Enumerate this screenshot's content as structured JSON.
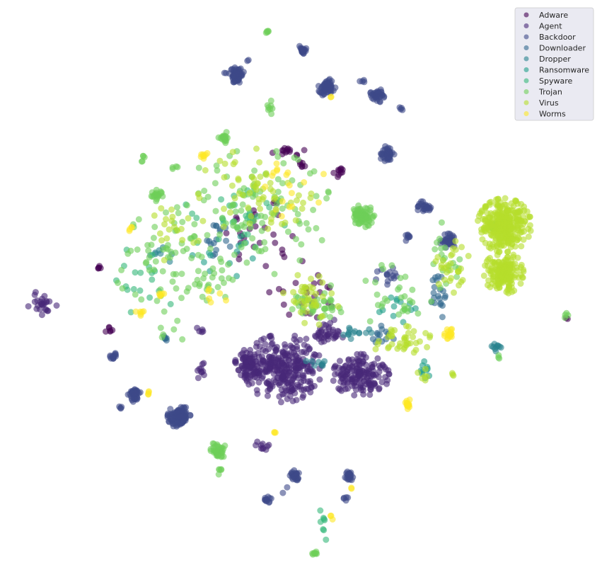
{
  "chart_data": {
    "type": "scatter",
    "title": "",
    "xlabel": "",
    "ylabel": "",
    "axes_visible": false,
    "grid": false,
    "legend_position": "top-right",
    "legend_bg": "#eaeaf2",
    "point_alpha": 0.6,
    "series": [
      {
        "name": "Adware",
        "color": "#440154",
        "clusters": [
          {
            "cx": 403,
            "cy": 214,
            "rx": 28,
            "ry": 8,
            "n": 14
          },
          {
            "cx": 140,
            "cy": 378,
            "rx": 4,
            "ry": 3,
            "n": 5
          },
          {
            "cx": 480,
            "cy": 242,
            "rx": 10,
            "ry": 12,
            "n": 10
          },
          {
            "cx": 427,
            "cy": 232,
            "rx": 8,
            "ry": 6,
            "n": 6
          },
          {
            "cx": 380,
            "cy": 330,
            "rx": 70,
            "ry": 60,
            "n": 30
          },
          {
            "cx": 430,
            "cy": 420,
            "rx": 60,
            "ry": 40,
            "n": 22
          },
          {
            "cx": 155,
            "cy": 465,
            "rx": 6,
            "ry": 8,
            "n": 6
          },
          {
            "cx": 800,
            "cy": 450,
            "rx": 3,
            "ry": 3,
            "n": 2
          }
        ]
      },
      {
        "name": "Agent",
        "color": "#482878",
        "clusters": [
          {
            "cx": 60,
            "cy": 430,
            "rx": 20,
            "ry": 22,
            "n": 26
          },
          {
            "cx": 400,
            "cy": 520,
            "rx": 55,
            "ry": 48,
            "n": 300
          },
          {
            "cx": 352,
            "cy": 515,
            "rx": 20,
            "ry": 22,
            "n": 70
          },
          {
            "cx": 510,
            "cy": 530,
            "rx": 40,
            "ry": 30,
            "n": 160
          },
          {
            "cx": 285,
            "cy": 525,
            "rx": 6,
            "ry": 14,
            "n": 10
          },
          {
            "cx": 370,
            "cy": 628,
            "rx": 10,
            "ry": 10,
            "n": 10
          },
          {
            "cx": 283,
            "cy": 465,
            "rx": 5,
            "ry": 5,
            "n": 5
          },
          {
            "cx": 460,
            "cy": 470,
            "rx": 30,
            "ry": 20,
            "n": 40
          }
        ]
      },
      {
        "name": "Backdoor",
        "color": "#3e4989",
        "clusters": [
          {
            "cx": 335,
            "cy": 106,
            "rx": 11,
            "ry": 11,
            "n": 60
          },
          {
            "cx": 427,
            "cy": 70,
            "rx": 6,
            "ry": 6,
            "n": 22
          },
          {
            "cx": 462,
            "cy": 124,
            "rx": 12,
            "ry": 13,
            "n": 60
          },
          {
            "cx": 533,
            "cy": 135,
            "rx": 10,
            "ry": 10,
            "n": 40
          },
          {
            "cx": 548,
            "cy": 218,
            "rx": 11,
            "ry": 12,
            "n": 40
          },
          {
            "cx": 253,
            "cy": 588,
            "rx": 16,
            "ry": 16,
            "n": 110
          },
          {
            "cx": 191,
            "cy": 558,
            "rx": 10,
            "ry": 10,
            "n": 40
          },
          {
            "cx": 160,
            "cy": 502,
            "rx": 6,
            "ry": 6,
            "n": 14
          },
          {
            "cx": 418,
            "cy": 672,
            "rx": 8,
            "ry": 8,
            "n": 25
          },
          {
            "cx": 493,
            "cy": 673,
            "rx": 8,
            "ry": 8,
            "n": 22
          },
          {
            "cx": 379,
            "cy": 707,
            "rx": 6,
            "ry": 6,
            "n": 12
          },
          {
            "cx": 399,
            "cy": 696,
            "rx": 2,
            "ry": 2,
            "n": 1
          },
          {
            "cx": 406,
            "cy": 688,
            "rx": 2,
            "ry": 2,
            "n": 1
          },
          {
            "cx": 490,
            "cy": 704,
            "rx": 4,
            "ry": 4,
            "n": 5
          },
          {
            "cx": 351,
            "cy": 86,
            "rx": 2,
            "ry": 2,
            "n": 2
          },
          {
            "cx": 319,
            "cy": 103,
            "rx": 2,
            "ry": 2,
            "n": 2
          },
          {
            "cx": 567,
            "cy": 154,
            "rx": 3,
            "ry": 3,
            "n": 4
          },
          {
            "cx": 513,
            "cy": 115,
            "rx": 8,
            "ry": 2,
            "n": 4
          },
          {
            "cx": 634,
            "cy": 340,
            "rx": 14,
            "ry": 10,
            "n": 40
          },
          {
            "cx": 599,
            "cy": 292,
            "rx": 10,
            "ry": 8,
            "n": 25
          },
          {
            "cx": 172,
            "cy": 576,
            "rx": 4,
            "ry": 3,
            "n": 4
          },
          {
            "cx": 577,
            "cy": 335,
            "rx": 4,
            "ry": 8,
            "n": 8
          },
          {
            "cx": 550,
            "cy": 390,
            "rx": 20,
            "ry": 12,
            "n": 15
          }
        ]
      },
      {
        "name": "Downloader",
        "color": "#31688e",
        "clusters": [
          {
            "cx": 310,
            "cy": 340,
            "rx": 20,
            "ry": 40,
            "n": 16
          },
          {
            "cx": 620,
            "cy": 420,
            "rx": 14,
            "ry": 30,
            "n": 20
          },
          {
            "cx": 235,
            "cy": 478,
            "rx": 8,
            "ry": 4,
            "n": 6
          },
          {
            "cx": 540,
            "cy": 470,
            "rx": 20,
            "ry": 15,
            "n": 14
          }
        ]
      },
      {
        "name": "Dropper",
        "color": "#26828e",
        "clusters": [
          {
            "cx": 700,
            "cy": 490,
            "rx": 10,
            "ry": 6,
            "n": 10
          },
          {
            "cx": 500,
            "cy": 470,
            "rx": 25,
            "ry": 10,
            "n": 14
          },
          {
            "cx": 450,
            "cy": 515,
            "rx": 20,
            "ry": 10,
            "n": 8
          },
          {
            "cx": 225,
            "cy": 360,
            "rx": 20,
            "ry": 15,
            "n": 8
          }
        ]
      },
      {
        "name": "Ransomware",
        "color": "#1f9e89",
        "clusters": [
          {
            "cx": 600,
            "cy": 520,
            "rx": 14,
            "ry": 14,
            "n": 10
          },
          {
            "cx": 330,
            "cy": 350,
            "rx": 60,
            "ry": 40,
            "n": 14
          },
          {
            "cx": 560,
            "cy": 440,
            "rx": 40,
            "ry": 20,
            "n": 12
          }
        ]
      },
      {
        "name": "Spyware",
        "color": "#35b779",
        "clusters": [
          {
            "cx": 330,
            "cy": 300,
            "rx": 90,
            "ry": 60,
            "n": 30
          },
          {
            "cx": 210,
            "cy": 400,
            "rx": 50,
            "ry": 60,
            "n": 18
          },
          {
            "cx": 455,
            "cy": 745,
            "rx": 8,
            "ry": 30,
            "n": 8
          }
        ]
      },
      {
        "name": "Trojan",
        "color": "#6ece58",
        "clusters": [
          {
            "cx": 378,
            "cy": 46,
            "rx": 3,
            "ry": 4,
            "n": 5
          },
          {
            "cx": 381,
            "cy": 152,
            "rx": 4,
            "ry": 12,
            "n": 8
          },
          {
            "cx": 317,
            "cy": 194,
            "rx": 8,
            "ry": 8,
            "n": 20
          },
          {
            "cx": 222,
            "cy": 276,
            "rx": 8,
            "ry": 8,
            "n": 20
          },
          {
            "cx": 513,
            "cy": 305,
            "rx": 16,
            "ry": 16,
            "n": 80
          },
          {
            "cx": 308,
            "cy": 636,
            "rx": 12,
            "ry": 12,
            "n": 35
          },
          {
            "cx": 311,
            "cy": 665,
            "rx": 3,
            "ry": 8,
            "n": 5
          },
          {
            "cx": 445,
            "cy": 782,
            "rx": 8,
            "ry": 3,
            "n": 8
          },
          {
            "cx": 203,
            "cy": 225,
            "rx": 4,
            "ry": 10,
            "n": 5
          },
          {
            "cx": 247,
            "cy": 236,
            "rx": 4,
            "ry": 4,
            "n": 4
          },
          {
            "cx": 800,
            "cy": 444,
            "rx": 4,
            "ry": 5,
            "n": 4
          },
          {
            "cx": 705,
            "cy": 505,
            "rx": 4,
            "ry": 4,
            "n": 3
          },
          {
            "cx": 360,
            "cy": 300,
            "rx": 110,
            "ry": 90,
            "n": 110
          },
          {
            "cx": 230,
            "cy": 370,
            "rx": 70,
            "ry": 70,
            "n": 60
          },
          {
            "cx": 300,
            "cy": 400,
            "rx": 40,
            "ry": 40,
            "n": 20
          },
          {
            "cx": 450,
            "cy": 430,
            "rx": 40,
            "ry": 30,
            "n": 40
          },
          {
            "cx": 560,
            "cy": 420,
            "rx": 50,
            "ry": 50,
            "n": 30
          },
          {
            "cx": 630,
            "cy": 360,
            "rx": 20,
            "ry": 50,
            "n": 20
          },
          {
            "cx": 240,
            "cy": 470,
            "rx": 20,
            "ry": 20,
            "n": 6
          },
          {
            "cx": 700,
            "cy": 320,
            "rx": 10,
            "ry": 10,
            "n": 10
          }
        ]
      },
      {
        "name": "Virus",
        "color": "#b5de2b",
        "clusters": [
          {
            "cx": 713,
            "cy": 318,
            "rx": 38,
            "ry": 38,
            "n": 300
          },
          {
            "cx": 712,
            "cy": 385,
            "rx": 28,
            "ry": 30,
            "n": 170
          },
          {
            "cx": 640,
            "cy": 380,
            "rx": 25,
            "ry": 40,
            "n": 30
          },
          {
            "cx": 360,
            "cy": 270,
            "rx": 80,
            "ry": 60,
            "n": 60
          },
          {
            "cx": 440,
            "cy": 420,
            "rx": 40,
            "ry": 40,
            "n": 40
          },
          {
            "cx": 565,
            "cy": 480,
            "rx": 45,
            "ry": 20,
            "n": 40
          },
          {
            "cx": 250,
            "cy": 330,
            "rx": 50,
            "ry": 40,
            "n": 20
          },
          {
            "cx": 600,
            "cy": 530,
            "rx": 10,
            "ry": 10,
            "n": 6
          },
          {
            "cx": 640,
            "cy": 528,
            "rx": 3,
            "ry": 3,
            "n": 3
          }
        ]
      },
      {
        "name": "Worms",
        "color": "#fde725",
        "clusters": [
          {
            "cx": 636,
            "cy": 472,
            "rx": 8,
            "ry": 8,
            "n": 18
          },
          {
            "cx": 576,
            "cy": 572,
            "rx": 6,
            "ry": 14,
            "n": 14
          },
          {
            "cx": 227,
            "cy": 416,
            "rx": 5,
            "ry": 5,
            "n": 6
          },
          {
            "cx": 210,
            "cy": 555,
            "rx": 4,
            "ry": 4,
            "n": 4
          },
          {
            "cx": 388,
            "cy": 610,
            "rx": 3,
            "ry": 3,
            "n": 3
          },
          {
            "cx": 468,
            "cy": 137,
            "rx": 3,
            "ry": 3,
            "n": 2
          },
          {
            "cx": 287,
            "cy": 218,
            "rx": 8,
            "ry": 6,
            "n": 8
          },
          {
            "cx": 183,
            "cy": 322,
            "rx": 6,
            "ry": 6,
            "n": 4
          },
          {
            "cx": 400,
            "cy": 260,
            "rx": 60,
            "ry": 50,
            "n": 18
          },
          {
            "cx": 300,
            "cy": 420,
            "rx": 20,
            "ry": 20,
            "n": 6
          },
          {
            "cx": 470,
            "cy": 730,
            "rx": 4,
            "ry": 6,
            "n": 3
          },
          {
            "cx": 200,
            "cy": 440,
            "rx": 8,
            "ry": 8,
            "n": 6
          },
          {
            "cx": 498,
            "cy": 690,
            "rx": 3,
            "ry": 3,
            "n": 2
          }
        ]
      }
    ]
  }
}
